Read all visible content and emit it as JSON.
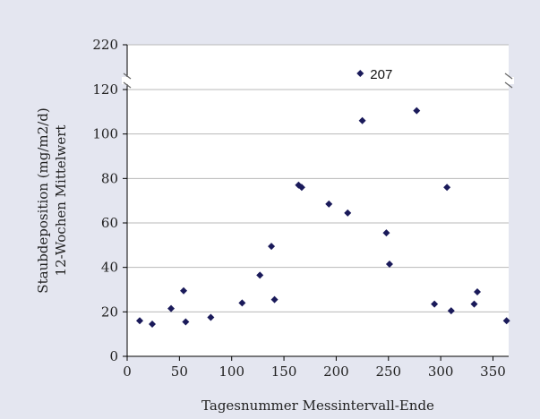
{
  "chart_data": {
    "type": "scatter",
    "title": "",
    "xlabel": "Tagesnummer Messintervall-Ende",
    "ylabel": [
      "Staubdeposition (mg/m2/d)",
      "12-Wochen Mittelwert"
    ],
    "xlim": [
      0,
      365
    ],
    "xticks": [
      "0",
      "50",
      "100",
      "150",
      "200",
      "250",
      "300",
      "350"
    ],
    "yticks": [
      "0",
      "20",
      "40",
      "60",
      "80",
      "100",
      "120",
      "220"
    ],
    "ylim_lower": [
      0,
      120
    ],
    "y_axis_break": {
      "above": 120,
      "top_label": "220"
    },
    "grid": "horizontal",
    "legend": "none",
    "marker_color": "#1a1a5a",
    "points": [
      {
        "x": 12,
        "y": 16
      },
      {
        "x": 24,
        "y": 14.5
      },
      {
        "x": 42,
        "y": 21.5
      },
      {
        "x": 54,
        "y": 29.5
      },
      {
        "x": 56,
        "y": 15.5
      },
      {
        "x": 80,
        "y": 17.5
      },
      {
        "x": 110,
        "y": 24
      },
      {
        "x": 127,
        "y": 36.5
      },
      {
        "x": 138,
        "y": 49.5
      },
      {
        "x": 141,
        "y": 25.5
      },
      {
        "x": 164,
        "y": 77
      },
      {
        "x": 167,
        "y": 76
      },
      {
        "x": 193,
        "y": 68.5
      },
      {
        "x": 211,
        "y": 64.5
      },
      {
        "x": 223,
        "y": 207,
        "beyond_break": true,
        "label": "207"
      },
      {
        "x": 225,
        "y": 106
      },
      {
        "x": 248,
        "y": 55.5
      },
      {
        "x": 251,
        "y": 41.5
      },
      {
        "x": 277,
        "y": 110.5
      },
      {
        "x": 294,
        "y": 23.5
      },
      {
        "x": 306,
        "y": 76
      },
      {
        "x": 310,
        "y": 20.5
      },
      {
        "x": 332,
        "y": 23.5
      },
      {
        "x": 335,
        "y": 29
      },
      {
        "x": 363,
        "y": 16
      }
    ]
  }
}
